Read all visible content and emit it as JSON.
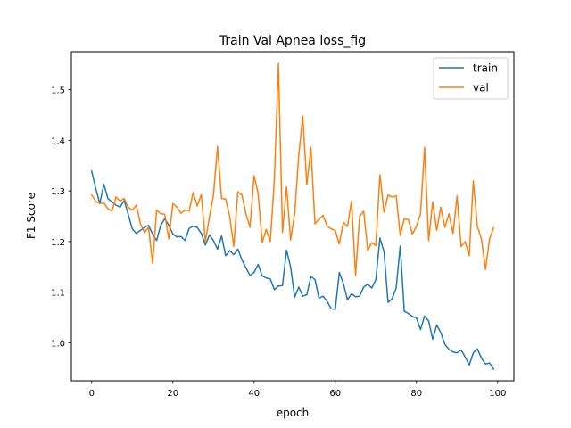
{
  "chart_data": {
    "type": "line",
    "title": "Train Val Apnea loss_fig",
    "xlabel": "epoch",
    "ylabel": "F1 Score",
    "xlim": [
      -5,
      104
    ],
    "ylim": [
      0.925,
      1.575
    ],
    "xticks": [
      0,
      20,
      40,
      60,
      80,
      100
    ],
    "yticks": [
      1.0,
      1.1,
      1.2,
      1.3,
      1.4,
      1.5
    ],
    "xtick_labels": [
      "0",
      "20",
      "40",
      "60",
      "80",
      "100"
    ],
    "ytick_labels": [
      "1.0",
      "1.1",
      "1.2",
      "1.3",
      "1.4",
      "1.5"
    ],
    "grid": false,
    "legend_position": "upper right",
    "x": [
      0,
      1,
      2,
      3,
      4,
      5,
      6,
      7,
      8,
      9,
      10,
      11,
      12,
      13,
      14,
      15,
      16,
      17,
      18,
      19,
      20,
      21,
      22,
      23,
      24,
      25,
      26,
      27,
      28,
      29,
      30,
      31,
      32,
      33,
      34,
      35,
      36,
      37,
      38,
      39,
      40,
      41,
      42,
      43,
      44,
      45,
      46,
      47,
      48,
      49,
      50,
      51,
      52,
      53,
      54,
      55,
      56,
      57,
      58,
      59,
      60,
      61,
      62,
      63,
      64,
      65,
      66,
      67,
      68,
      69,
      70,
      71,
      72,
      73,
      74,
      75,
      76,
      77,
      78,
      79,
      80,
      81,
      82,
      83,
      84,
      85,
      86,
      87,
      88,
      89,
      90,
      91,
      92,
      93,
      94,
      95,
      96,
      97,
      98,
      99
    ],
    "series": [
      {
        "name": "train",
        "color": "#1f77b4",
        "values": [
          1.339,
          1.305,
          1.275,
          1.313,
          1.285,
          1.278,
          1.272,
          1.268,
          1.281,
          1.254,
          1.225,
          1.216,
          1.222,
          1.228,
          1.232,
          1.215,
          1.202,
          1.232,
          1.245,
          1.232,
          1.215,
          1.209,
          1.21,
          1.202,
          1.226,
          1.23,
          1.228,
          1.216,
          1.193,
          1.213,
          1.202,
          1.185,
          1.211,
          1.172,
          1.182,
          1.174,
          1.185,
          1.164,
          1.148,
          1.133,
          1.139,
          1.155,
          1.132,
          1.128,
          1.126,
          1.105,
          1.112,
          1.113,
          1.183,
          1.15,
          1.09,
          1.11,
          1.092,
          1.095,
          1.131,
          1.125,
          1.088,
          1.092,
          1.082,
          1.067,
          1.066,
          1.139,
          1.117,
          1.085,
          1.097,
          1.091,
          1.092,
          1.11,
          1.116,
          1.108,
          1.125,
          1.207,
          1.18,
          1.08,
          1.087,
          1.108,
          1.191,
          1.062,
          1.058,
          1.052,
          1.049,
          1.026,
          1.053,
          1.043,
          1.007,
          1.035,
          1.02,
          0.997,
          0.987,
          0.982,
          0.98,
          0.986,
          0.972,
          0.956,
          0.98,
          0.988,
          0.97,
          0.958,
          0.96,
          0.948
        ]
      },
      {
        "name": "val",
        "color": "#ff7f0e",
        "values": [
          1.292,
          1.28,
          1.275,
          1.276,
          1.265,
          1.26,
          1.288,
          1.28,
          1.285,
          1.268,
          1.262,
          1.272,
          1.235,
          1.218,
          1.228,
          1.157,
          1.262,
          1.255,
          1.254,
          1.205,
          1.275,
          1.268,
          1.256,
          1.262,
          1.26,
          1.297,
          1.27,
          1.293,
          1.2,
          1.248,
          1.292,
          1.388,
          1.285,
          1.284,
          1.25,
          1.19,
          1.298,
          1.292,
          1.255,
          1.228,
          1.33,
          1.295,
          1.198,
          1.224,
          1.2,
          1.323,
          1.552,
          1.218,
          1.308,
          1.203,
          1.255,
          1.37,
          1.448,
          1.312,
          1.386,
          1.235,
          1.244,
          1.252,
          1.23,
          1.225,
          1.222,
          1.195,
          1.238,
          1.23,
          1.28,
          1.133,
          1.25,
          1.26,
          1.182,
          1.198,
          1.192,
          1.332,
          1.258,
          1.292,
          1.288,
          1.29,
          1.212,
          1.245,
          1.243,
          1.215,
          1.23,
          1.255,
          1.386,
          1.202,
          1.278,
          1.222,
          1.268,
          1.228,
          1.255,
          1.216,
          1.29,
          1.19,
          1.2,
          1.172,
          1.32,
          1.23,
          1.205,
          1.145,
          1.205,
          1.227
        ]
      }
    ]
  }
}
